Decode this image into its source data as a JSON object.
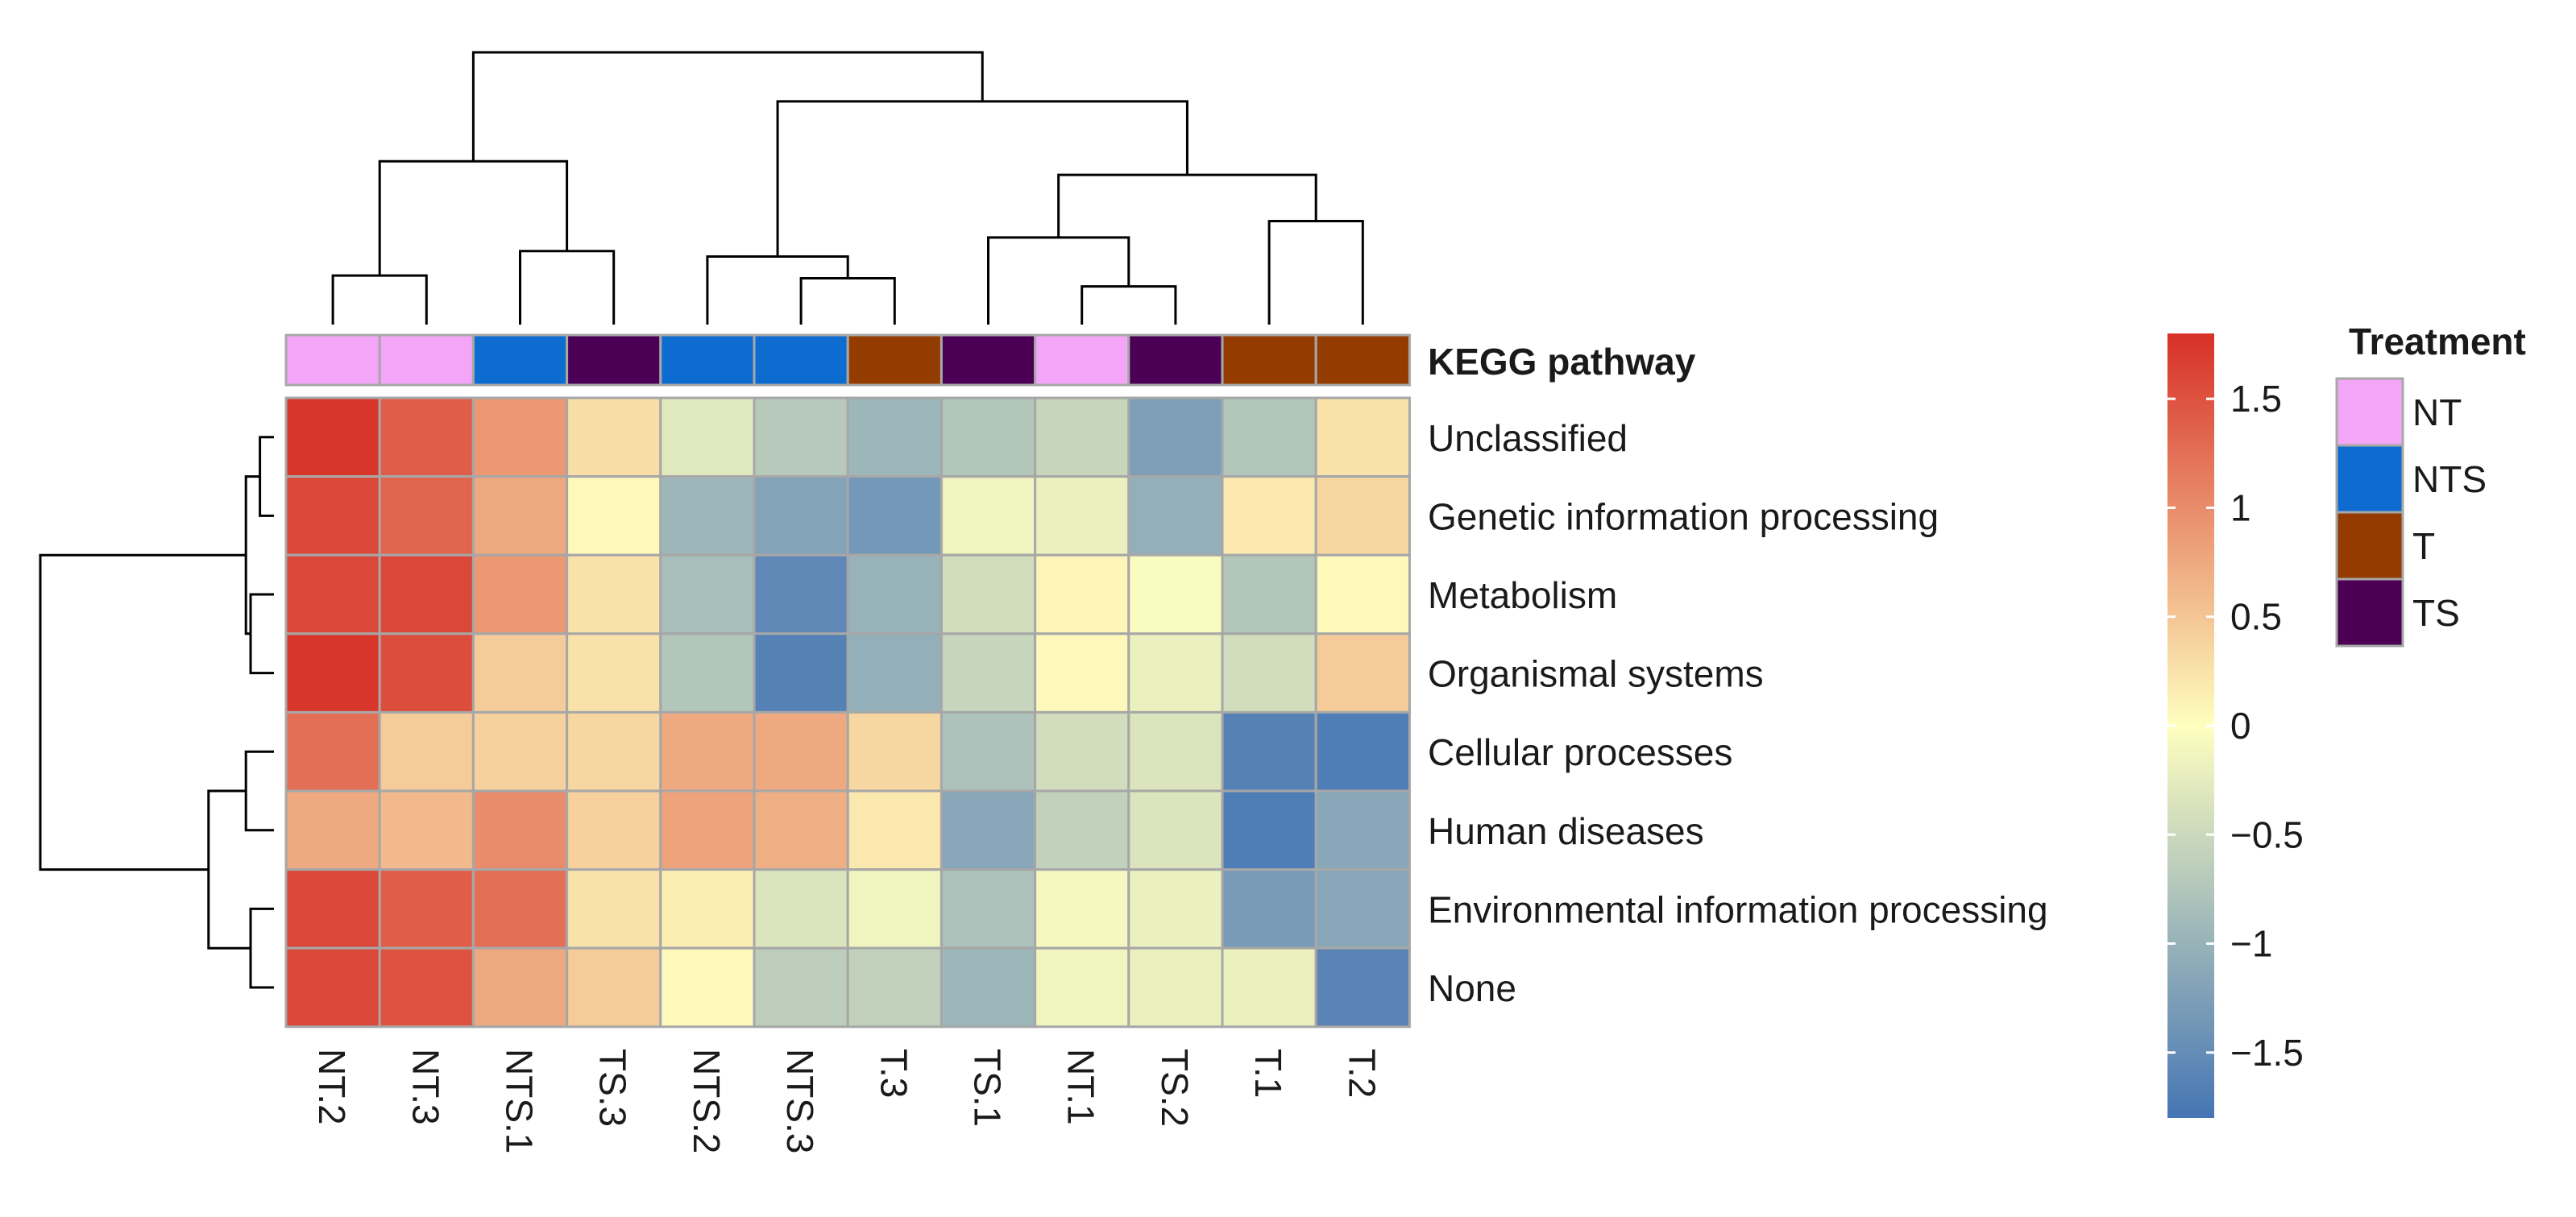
{
  "chart_data": {
    "type": "heatmap",
    "annotation_title": "KEGG pathway",
    "legend_title": "Treatment",
    "columns": [
      "NT.2",
      "NT.3",
      "NTS.1",
      "TS.3",
      "NTS.2",
      "NTS.3",
      "T.3",
      "TS.1",
      "NT.1",
      "TS.2",
      "T.1",
      "T.2"
    ],
    "column_groups": [
      "NT",
      "NT",
      "NTS",
      "TS",
      "NTS",
      "NTS",
      "T",
      "TS",
      "NT",
      "TS",
      "T",
      "T"
    ],
    "rows": [
      "Unclassified",
      "Genetic information processing",
      "Metabolism",
      "Organismal systems",
      "Cellular processes",
      "Human diseases",
      "Environmental information processing",
      "None"
    ],
    "values": [
      [
        1.75,
        1.4,
        0.9,
        0.3,
        -0.3,
        -0.7,
        -0.95,
        -0.75,
        -0.55,
        -1.25,
        -0.75,
        0.25
      ],
      [
        1.6,
        1.35,
        0.75,
        0.05,
        -0.95,
        -1.2,
        -1.35,
        -0.15,
        -0.2,
        -1.05,
        0.2,
        0.35
      ],
      [
        1.6,
        1.6,
        0.9,
        0.25,
        -0.85,
        -1.55,
        -1.0,
        -0.45,
        0.1,
        -0.05,
        -0.75,
        0.05
      ],
      [
        1.75,
        1.55,
        0.45,
        0.25,
        -0.75,
        -1.65,
        -1.05,
        -0.55,
        0.05,
        -0.2,
        -0.45,
        0.45
      ],
      [
        1.25,
        0.45,
        0.4,
        0.35,
        0.75,
        0.75,
        0.35,
        -0.8,
        -0.45,
        -0.35,
        -1.65,
        -1.7
      ],
      [
        0.75,
        0.6,
        1.0,
        0.4,
        0.8,
        0.7,
        0.2,
        -1.15,
        -0.6,
        -0.35,
        -1.7,
        -1.15
      ],
      [
        1.6,
        1.4,
        1.25,
        0.25,
        0.15,
        -0.35,
        -0.15,
        -0.8,
        -0.1,
        -0.2,
        -1.3,
        -1.15
      ],
      [
        1.6,
        1.5,
        0.75,
        0.45,
        0.05,
        -0.65,
        -0.6,
        -0.95,
        -0.15,
        -0.2,
        -0.2,
        -1.6
      ]
    ],
    "color_scale": {
      "min": -1.8,
      "max": 1.8,
      "low": "#4575B4",
      "mid": "#FFFFBF",
      "high": "#D73027",
      "ticks": [
        1.5,
        1,
        0.5,
        0,
        -0.5,
        -1,
        -1.5
      ],
      "tick_labels": [
        "1.5",
        "1",
        "0.5",
        "0",
        "−0.5",
        "−1",
        "−1.5"
      ]
    },
    "legend": [
      {
        "name": "NT",
        "color": "#F3A6F7"
      },
      {
        "name": "NTS",
        "color": "#0E6CD0"
      },
      {
        "name": "T",
        "color": "#943C00"
      },
      {
        "name": "TS",
        "color": "#4C0055"
      }
    ],
    "column_tree": [
      [
        0,
        1
      ],
      [
        2,
        3
      ],
      [
        -1,
        -2
      ],
      [
        5,
        6
      ],
      [
        4,
        -4
      ],
      [
        8,
        9
      ],
      [
        7,
        -6
      ],
      [
        10,
        11
      ],
      [
        -7,
        -8
      ],
      [
        -5,
        -9
      ],
      [
        -3,
        -10
      ]
    ],
    "column_tree_heights": [
      0.18,
      0.27,
      0.6,
      0.17,
      0.25,
      0.14,
      0.32,
      0.38,
      0.55,
      0.82,
      1.0
    ],
    "row_tree": [
      [
        0,
        1
      ],
      [
        2,
        3
      ],
      [
        -1,
        -2
      ],
      [
        4,
        5
      ],
      [
        6,
        7
      ],
      [
        -4,
        -5
      ],
      [
        -3,
        -6
      ]
    ],
    "row_tree_heights": [
      0.06,
      0.1,
      0.12,
      0.12,
      0.1,
      0.28,
      1.0
    ]
  }
}
